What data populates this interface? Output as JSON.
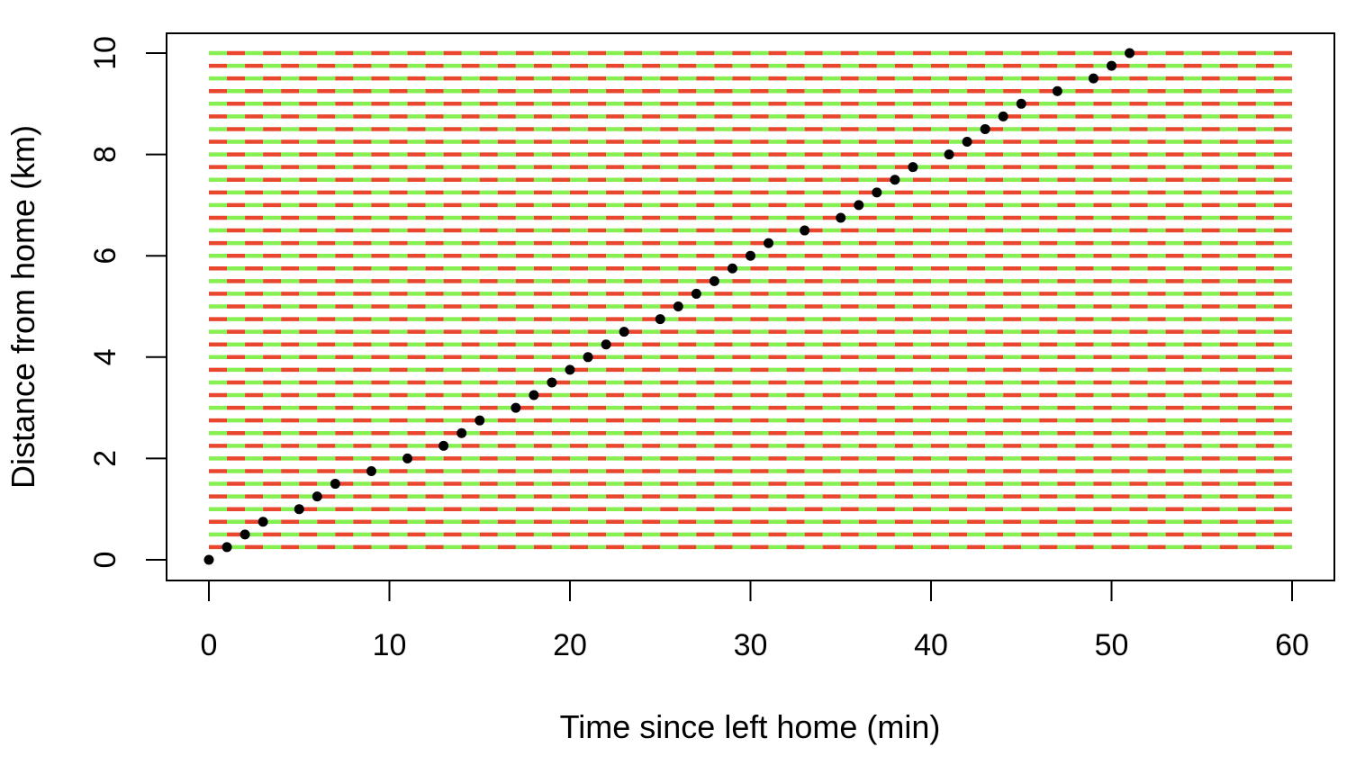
{
  "chart_data": {
    "type": "scatter",
    "title": "",
    "xlabel": "Time since left home (min)",
    "ylabel": "Distance from home (km)",
    "xlim": [
      0,
      60
    ],
    "ylim": [
      0,
      10
    ],
    "x_ticks": [
      "0",
      "10",
      "20",
      "30",
      "40",
      "50",
      "60"
    ],
    "y_ticks": [
      "0",
      "2",
      "4",
      "6",
      "8",
      "10"
    ],
    "background_pattern": {
      "description": "grid of alternating colored segments behind points",
      "colors": [
        "#e8462f",
        "#86ef52"
      ],
      "row_step_km": 0.25,
      "col_step_min": 1
    },
    "points": {
      "color": "#000000",
      "x": [
        0,
        1,
        2,
        3,
        5,
        6,
        7,
        9,
        11,
        13,
        14,
        15,
        17,
        18,
        19,
        20,
        21,
        22,
        23,
        25,
        26,
        27,
        28,
        29,
        30,
        31,
        33,
        35,
        36,
        37,
        38,
        39,
        41,
        42,
        43,
        44,
        45,
        47,
        49,
        50,
        51
      ],
      "y": [
        0,
        0.25,
        0.5,
        0.75,
        1.0,
        1.25,
        1.5,
        1.75,
        2.0,
        2.25,
        2.5,
        2.75,
        3.0,
        3.25,
        3.5,
        3.75,
        4.0,
        4.25,
        4.5,
        4.75,
        5.0,
        5.25,
        5.5,
        5.75,
        6.0,
        6.25,
        6.5,
        6.75,
        7.0,
        7.25,
        7.5,
        7.75,
        8.0,
        8.25,
        8.5,
        8.75,
        9.0,
        9.25,
        9.5,
        9.75,
        10.0
      ]
    }
  }
}
